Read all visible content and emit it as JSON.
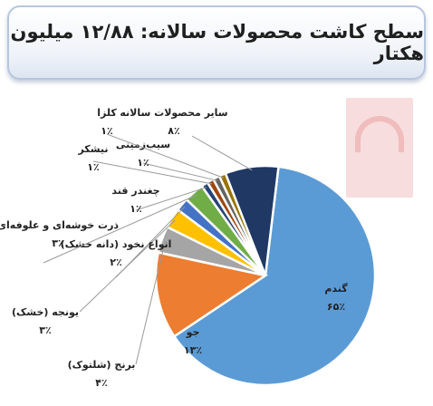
{
  "title": "سطح کاشت محصولات سالانه: ۱۲/۸۸ میلیون هکتار",
  "chart_data": {
    "type": "pie",
    "slices": [
      {
        "label": "گندم",
        "value_label": "۶۵٪",
        "value": 65,
        "color": "#5b9bd5"
      },
      {
        "label": "جو",
        "value_label": "۱۳٪",
        "value": 13,
        "color": "#ed7d31"
      },
      {
        "label": "برنج (شلتوک)",
        "value_label": "۴٪",
        "value": 4,
        "color": "#a5a5a5"
      },
      {
        "label": "یونجه (خشک)",
        "value_label": "۳٪",
        "value": 3,
        "color": "#ffc000"
      },
      {
        "label": "انواع نخود (دانه خشک)",
        "value_label": "۲٪",
        "value": 2,
        "color": "#4472c4"
      },
      {
        "label": "ذرت خوشه‌ای و علوفه‌ای",
        "value_label": "۳٪",
        "value": 3,
        "color": "#70ad47"
      },
      {
        "label": "چغندر قند",
        "value_label": "۱٪",
        "value": 1,
        "color": "#264478"
      },
      {
        "label": "نیشکر",
        "value_label": "۱٪",
        "value": 1,
        "color": "#9e480e"
      },
      {
        "label": "سیب‌زمینی",
        "value_label": "۱٪",
        "value": 1,
        "color": "#636363"
      },
      {
        "label": "کلزا",
        "value_label": "۱٪",
        "value": 1,
        "color": "#997300"
      },
      {
        "label": "سایر محصولات سالانه",
        "value_label": "۸٪",
        "value": 8,
        "color": "#1f3864"
      }
    ]
  },
  "watermark_text": "Tasnim"
}
